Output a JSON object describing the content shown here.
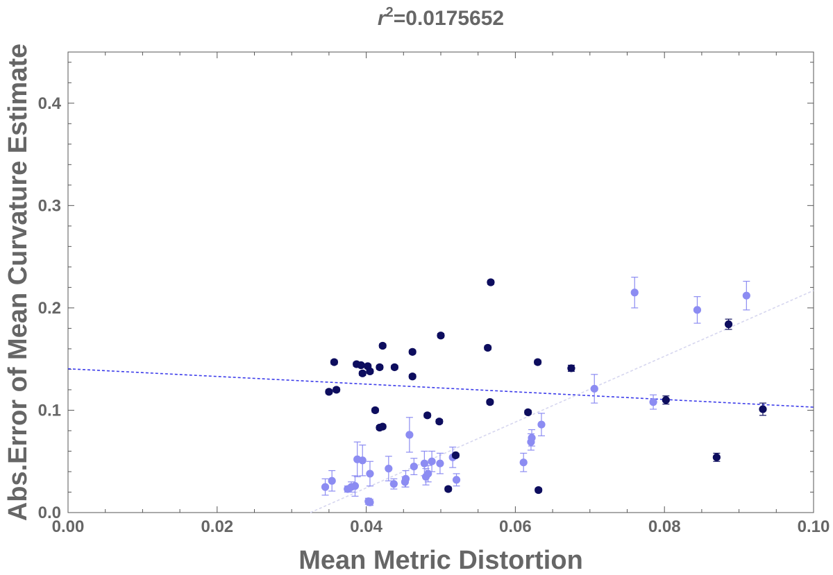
{
  "chart_data": {
    "type": "scatter",
    "title": "r²=0.0175652",
    "title_parts": {
      "variable": "r",
      "exponent": "2",
      "value": "=0.0175652"
    },
    "xlabel": "Mean Metric Distortion",
    "ylabel": "Abs.Error of Mean Curvature Estimate",
    "xlim": [
      0.0,
      0.1
    ],
    "ylim": [
      0.0,
      0.45
    ],
    "x_ticks": [
      "0.00",
      "0.02",
      "0.04",
      "0.06",
      "0.08",
      "0.10"
    ],
    "y_ticks": [
      "0.0",
      "0.1",
      "0.2",
      "0.3",
      "0.4"
    ],
    "grid": false,
    "series": [
      {
        "name": "dark",
        "color": "#0d0d5e",
        "points": [
          [
            0.035,
            0.118,
            0.002
          ],
          [
            0.0357,
            0.147,
            0.002
          ],
          [
            0.036,
            0.12,
            0.002
          ],
          [
            0.0387,
            0.145,
            0.002
          ],
          [
            0.0393,
            0.144,
            0.002
          ],
          [
            0.0395,
            0.136,
            0.002
          ],
          [
            0.0402,
            0.143,
            0.002
          ],
          [
            0.0405,
            0.138,
            0.002
          ],
          [
            0.0412,
            0.1,
            0.002
          ],
          [
            0.0418,
            0.142,
            0.002
          ],
          [
            0.0418,
            0.083,
            0.002
          ],
          [
            0.0422,
            0.084,
            0.002
          ],
          [
            0.0422,
            0.163,
            0.002
          ],
          [
            0.0438,
            0.142,
            0.002
          ],
          [
            0.0462,
            0.157,
            0.002
          ],
          [
            0.0462,
            0.133,
            0.002
          ],
          [
            0.0482,
            0.095,
            0.002
          ],
          [
            0.0498,
            0.089,
            0.002
          ],
          [
            0.05,
            0.173,
            0.002
          ],
          [
            0.051,
            0.023,
            0.002
          ],
          [
            0.052,
            0.056,
            0.002
          ],
          [
            0.0563,
            0.161,
            0.002
          ],
          [
            0.0566,
            0.108,
            0.002
          ],
          [
            0.0567,
            0.225,
            0.002
          ],
          [
            0.0617,
            0.098,
            0.002
          ],
          [
            0.063,
            0.147,
            0.002
          ],
          [
            0.0631,
            0.022,
            0.002
          ],
          [
            0.0675,
            0.141,
            0.003
          ],
          [
            0.0802,
            0.11,
            0.004
          ],
          [
            0.087,
            0.054,
            0.004
          ],
          [
            0.0886,
            0.184,
            0.005
          ],
          [
            0.0932,
            0.101,
            0.006
          ]
        ],
        "fit_line": {
          "slope": -0.375,
          "intercept": 0.1405,
          "style": "dashed",
          "color": "#3b3bea"
        }
      },
      {
        "name": "light",
        "color": "#8c8cf2",
        "points": [
          [
            0.0345,
            0.025,
            0.008
          ],
          [
            0.0354,
            0.031,
            0.01
          ],
          [
            0.0375,
            0.023,
            0.003
          ],
          [
            0.038,
            0.025,
            0.005
          ],
          [
            0.0385,
            0.026,
            0.01
          ],
          [
            0.0388,
            0.052,
            0.017
          ],
          [
            0.0395,
            0.051,
            0.015
          ],
          [
            0.0403,
            0.011,
            0.003
          ],
          [
            0.0405,
            0.01,
            0.003
          ],
          [
            0.0405,
            0.038,
            0.012
          ],
          [
            0.043,
            0.043,
            0.012
          ],
          [
            0.0437,
            0.028,
            0.005
          ],
          [
            0.0452,
            0.03,
            0.005
          ],
          [
            0.0453,
            0.033,
            0.008
          ],
          [
            0.0458,
            0.076,
            0.017
          ],
          [
            0.0464,
            0.045,
            0.008
          ],
          [
            0.0478,
            0.048,
            0.012
          ],
          [
            0.048,
            0.035,
            0.008
          ],
          [
            0.0483,
            0.038,
            0.008
          ],
          [
            0.0488,
            0.05,
            0.01
          ],
          [
            0.0499,
            0.048,
            0.01
          ],
          [
            0.0516,
            0.054,
            0.01
          ],
          [
            0.0521,
            0.032,
            0.006
          ],
          [
            0.0611,
            0.049,
            0.009
          ],
          [
            0.0621,
            0.069,
            0.008
          ],
          [
            0.0622,
            0.073,
            0.008
          ],
          [
            0.0635,
            0.086,
            0.011
          ],
          [
            0.0706,
            0.121,
            0.014
          ],
          [
            0.076,
            0.215,
            0.015
          ],
          [
            0.0785,
            0.108,
            0.007
          ],
          [
            0.0844,
            0.198,
            0.013
          ],
          [
            0.091,
            0.212,
            0.014
          ]
        ],
        "fit_line": {
          "slope": 3.215,
          "intercept": -0.1045,
          "style": "dashed",
          "color": "#d6d6ef"
        }
      }
    ]
  }
}
